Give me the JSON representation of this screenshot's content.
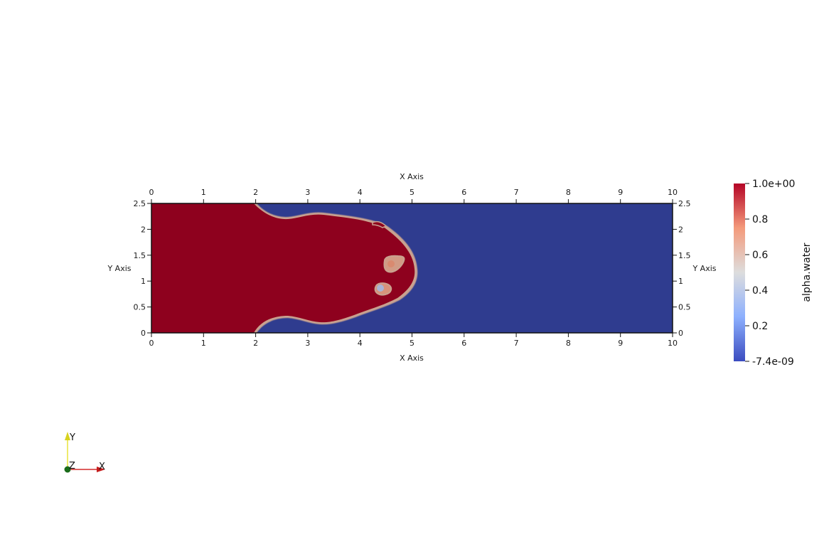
{
  "scene": {
    "domain_x": [
      0,
      10
    ],
    "domain_y": [
      0,
      2.5
    ],
    "colors": {
      "water": "#8e011e",
      "air": "#2f3c8f",
      "interface": "#c9a290",
      "background": "#ffffff"
    }
  },
  "axes": {
    "x_title": "X Axis",
    "y_title": "Y Axis",
    "x_ticks": [
      {
        "value": 0,
        "label": "0"
      },
      {
        "value": 1,
        "label": "1"
      },
      {
        "value": 2,
        "label": "2"
      },
      {
        "value": 3,
        "label": "3"
      },
      {
        "value": 4,
        "label": "4"
      },
      {
        "value": 5,
        "label": "5"
      },
      {
        "value": 6,
        "label": "6"
      },
      {
        "value": 7,
        "label": "7"
      },
      {
        "value": 8,
        "label": "8"
      },
      {
        "value": 9,
        "label": "9"
      },
      {
        "value": 10,
        "label": "10"
      }
    ],
    "y_ticks": [
      {
        "value": 0,
        "label": "0"
      },
      {
        "value": 0.5,
        "label": "0.5"
      },
      {
        "value": 1,
        "label": "1"
      },
      {
        "value": 1.5,
        "label": "1.5"
      },
      {
        "value": 2,
        "label": "2"
      },
      {
        "value": 2.5,
        "label": "2.5"
      }
    ]
  },
  "colorbar": {
    "title": "alpha.water",
    "labels": [
      "1.0e+00",
      "0.8",
      "0.6",
      "0.4",
      "0.2",
      "-7.4e-09"
    ],
    "stops": [
      {
        "offset": 0.0,
        "color": "#b40426"
      },
      {
        "offset": 0.25,
        "color": "#f49a7b"
      },
      {
        "offset": 0.5,
        "color": "#dddddd"
      },
      {
        "offset": 0.75,
        "color": "#8db0fe"
      },
      {
        "offset": 1.0,
        "color": "#3b4cc0"
      }
    ]
  },
  "orientation": {
    "x_label": "X",
    "y_label": "Y",
    "z_label": "Z"
  }
}
